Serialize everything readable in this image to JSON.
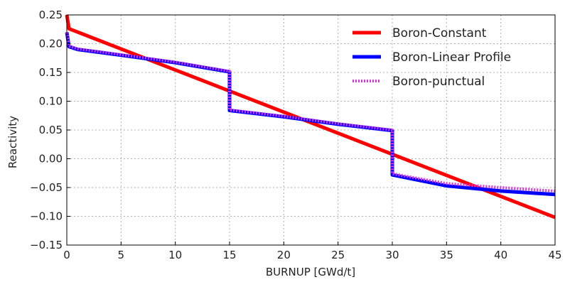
{
  "chart_data": {
    "type": "line",
    "xlabel": "BURNUP [GWd/t]",
    "ylabel": "Reactivity",
    "xlim": [
      0,
      45
    ],
    "ylim": [
      -0.15,
      0.25
    ],
    "xticks": [
      0,
      5,
      10,
      15,
      20,
      25,
      30,
      35,
      40,
      45
    ],
    "yticks": [
      -0.15,
      -0.1,
      -0.05,
      0.0,
      0.05,
      0.1,
      0.15,
      0.2,
      0.25
    ],
    "xtick_labels": [
      "0",
      "5",
      "10",
      "15",
      "20",
      "25",
      "30",
      "35",
      "40",
      "45"
    ],
    "ytick_labels": [
      "−0.15",
      "−0.10",
      "−0.05",
      "0.00",
      "0.05",
      "0.10",
      "0.15",
      "0.20",
      "0.25"
    ],
    "grid": true,
    "legend_position": "top-right",
    "series": [
      {
        "name": "Boron-Constant",
        "color": "#ff0000",
        "style": "solid",
        "points": [
          [
            0,
            0.25
          ],
          [
            0.2,
            0.226
          ],
          [
            45,
            -0.102
          ]
        ]
      },
      {
        "name": "Boron-Linear Profile",
        "color": "#0000ff",
        "style": "solid",
        "points": [
          [
            0,
            0.22
          ],
          [
            0.2,
            0.195
          ],
          [
            1,
            0.19
          ],
          [
            5,
            0.18
          ],
          [
            10,
            0.167
          ],
          [
            15,
            0.151
          ],
          [
            15,
            0.084
          ],
          [
            20,
            0.073
          ],
          [
            25,
            0.06
          ],
          [
            30,
            0.049
          ],
          [
            30,
            -0.028
          ],
          [
            35,
            -0.047
          ],
          [
            40,
            -0.056
          ],
          [
            45,
            -0.062
          ]
        ]
      },
      {
        "name": "Boron-punctual",
        "color": "#dd33dd",
        "style": "dotted",
        "points": [
          [
            0,
            0.22
          ],
          [
            0.2,
            0.196
          ],
          [
            1,
            0.191
          ],
          [
            5,
            0.181
          ],
          [
            10,
            0.168
          ],
          [
            15,
            0.152
          ],
          [
            15,
            0.085
          ],
          [
            20,
            0.074
          ],
          [
            25,
            0.061
          ],
          [
            30,
            0.05
          ],
          [
            30,
            -0.026
          ],
          [
            35,
            -0.043
          ],
          [
            40,
            -0.05
          ],
          [
            45,
            -0.056
          ]
        ]
      }
    ]
  }
}
